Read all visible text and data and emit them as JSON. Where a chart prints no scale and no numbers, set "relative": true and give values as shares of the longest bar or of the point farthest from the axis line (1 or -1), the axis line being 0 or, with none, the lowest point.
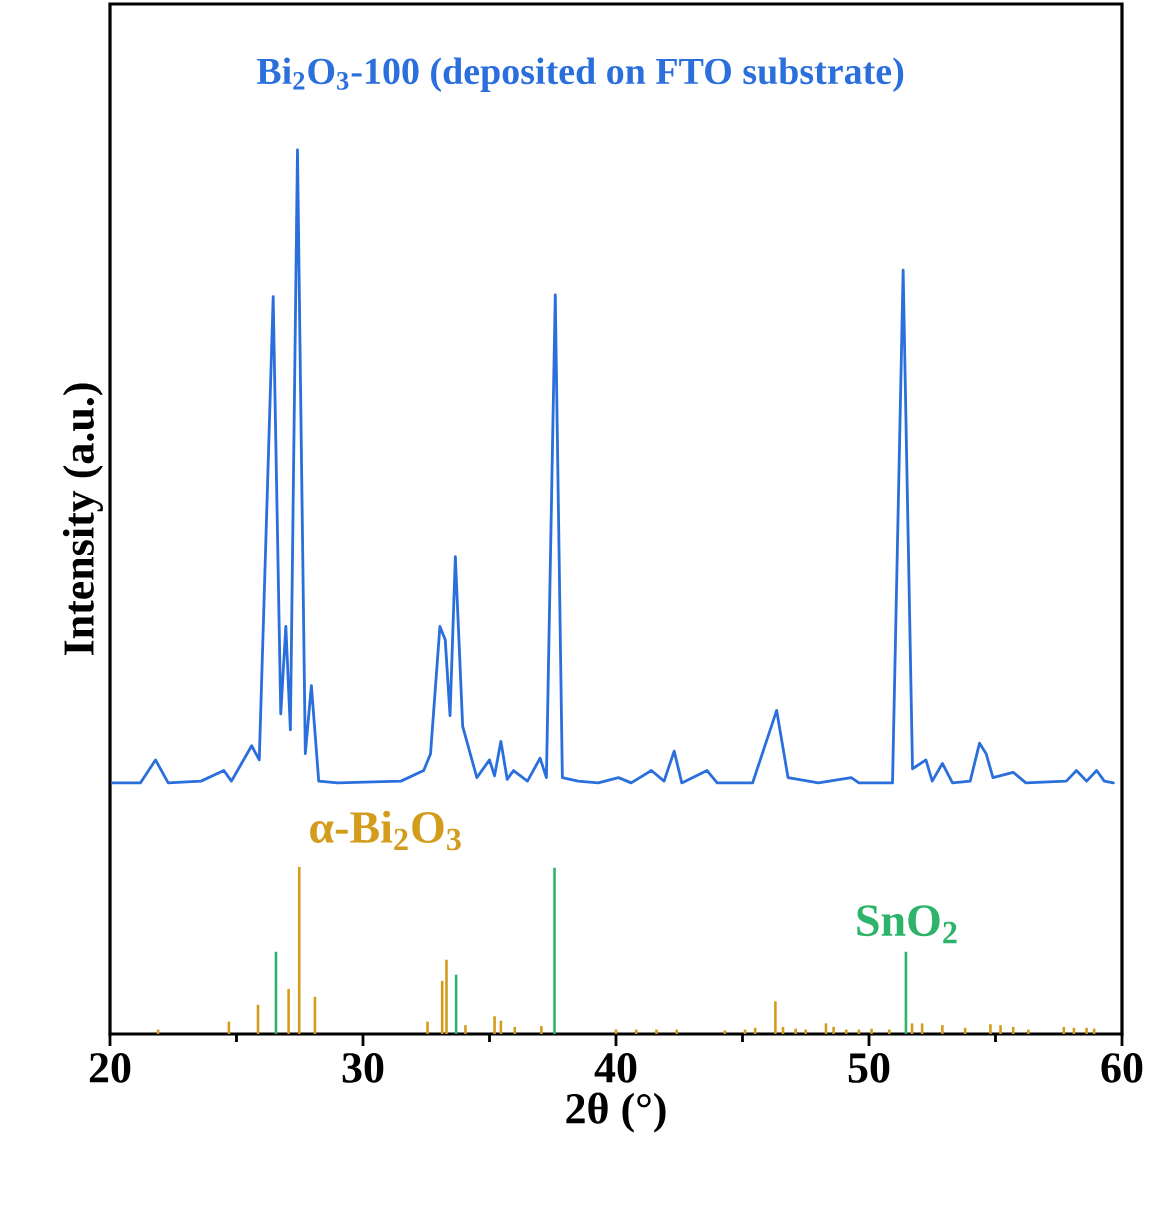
{
  "chart_data": {
    "type": "line",
    "relative": true,
    "xlabel": "2θ (°)",
    "ylabel": "Intensity (a.u.)",
    "xlim": [
      20,
      60
    ],
    "xticks": [
      20,
      30,
      40,
      50,
      60
    ],
    "series": [
      {
        "name": "Bi$_{2}$O$_{3}$-100 (deposited on FTO substrate)",
        "color": "#2a6fdb",
        "x": [
          20.1,
          21.2,
          21.8,
          22.3,
          23.6,
          24.5,
          24.8,
          25.6,
          25.9,
          26.45,
          26.75,
          26.95,
          27.13,
          27.41,
          27.72,
          27.96,
          28.25,
          29.0,
          31.5,
          32.4,
          32.67,
          33.04,
          33.25,
          33.44,
          33.65,
          33.94,
          34.5,
          35.0,
          35.2,
          35.45,
          35.7,
          35.95,
          36.5,
          37.0,
          37.25,
          37.6,
          37.88,
          38.5,
          39.3,
          40.1,
          40.6,
          41.4,
          41.9,
          42.3,
          42.6,
          43.6,
          44.0,
          45.4,
          46.35,
          46.8,
          48.0,
          49.3,
          49.6,
          50.93,
          51.35,
          51.72,
          52.25,
          52.5,
          52.9,
          53.3,
          54.0,
          54.37,
          54.63,
          54.9,
          55.7,
          56.2,
          57.8,
          58.2,
          58.6,
          59.0,
          59.3,
          59.66
        ],
        "values": [
          0.284,
          0.284,
          0.31,
          0.284,
          0.286,
          0.298,
          0.286,
          0.326,
          0.31,
          0.834,
          0.362,
          0.461,
          0.344,
          1.0,
          0.317,
          0.394,
          0.286,
          0.284,
          0.286,
          0.298,
          0.317,
          0.461,
          0.446,
          0.36,
          0.54,
          0.348,
          0.29,
          0.31,
          0.292,
          0.331,
          0.288,
          0.298,
          0.286,
          0.312,
          0.29,
          0.836,
          0.29,
          0.286,
          0.284,
          0.29,
          0.284,
          0.298,
          0.286,
          0.32,
          0.284,
          0.298,
          0.284,
          0.284,
          0.366,
          0.29,
          0.284,
          0.29,
          0.284,
          0.284,
          0.864,
          0.3,
          0.31,
          0.286,
          0.306,
          0.284,
          0.286,
          0.329,
          0.317,
          0.29,
          0.296,
          0.284,
          0.286,
          0.298,
          0.286,
          0.298,
          0.286,
          0.284
        ]
      },
      {
        "name": "α-Bi$_{2}$O$_{3}$",
        "type": "bar",
        "color": "#d39c1c",
        "x": [
          21.9,
          24.7,
          25.85,
          27.06,
          27.48,
          28.1,
          32.55,
          33.13,
          33.3,
          34.05,
          35.2,
          35.45,
          36.0,
          37.05,
          40.0,
          40.8,
          41.6,
          42.4,
          44.3,
          45.1,
          45.5,
          46.3,
          46.6,
          47.1,
          47.5,
          48.3,
          48.6,
          49.1,
          49.6,
          50.1,
          50.8,
          51.7,
          52.1,
          52.9,
          53.8,
          54.8,
          55.2,
          55.7,
          56.3,
          57.7,
          58.1,
          58.6,
          58.9
        ],
        "values": [
          0.005,
          0.014,
          0.033,
          0.051,
          0.189,
          0.042,
          0.014,
          0.06,
          0.084,
          0.01,
          0.02,
          0.015,
          0.008,
          0.009,
          0.005,
          0.005,
          0.005,
          0.005,
          0.004,
          0.005,
          0.007,
          0.037,
          0.008,
          0.006,
          0.005,
          0.012,
          0.008,
          0.005,
          0.005,
          0.006,
          0.005,
          0.012,
          0.012,
          0.01,
          0.007,
          0.011,
          0.01,
          0.008,
          0.005,
          0.008,
          0.007,
          0.007,
          0.006
        ]
      },
      {
        "name": "SnO$_{2}$",
        "type": "bar",
        "color": "#2eb36b",
        "x": [
          26.56,
          33.68,
          37.57,
          51.46
        ],
        "values": [
          0.093,
          0.067,
          0.188,
          0.093
        ]
      }
    ]
  }
}
